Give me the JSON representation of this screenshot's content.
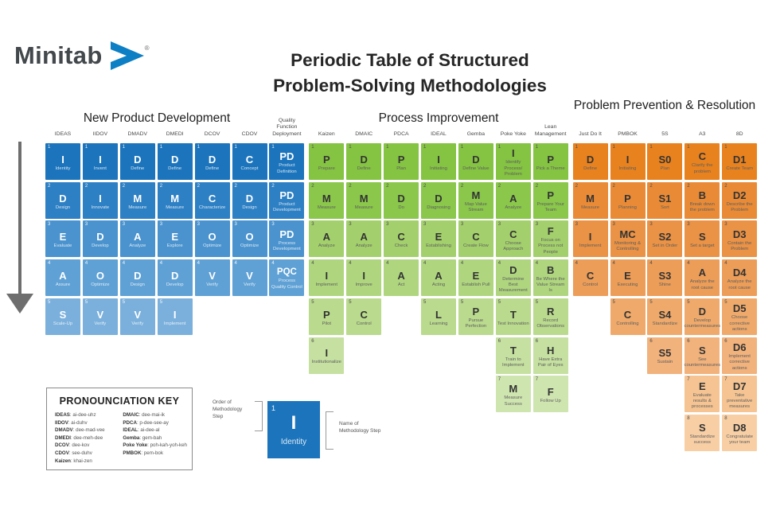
{
  "brand": {
    "name": "Minitab",
    "registered": "®",
    "logo_color": "#0d7fc4"
  },
  "title": {
    "line1": "Periodic Table of Structured",
    "line2": "Problem-Solving Methodologies"
  },
  "sections": {
    "npd": "New Product Development",
    "pi": "Process Improvement",
    "ppr": "Problem Prevention & Resolution"
  },
  "theme_colors": {
    "blue": [
      "#1C75BC",
      "#2E80C4",
      "#4A93CE",
      "#5FA1D5",
      "#7BB0DC"
    ],
    "green": [
      "#85C342",
      "#8AC74B",
      "#A3D06C",
      "#AFD67E",
      "#BADA8E",
      "#C5E0A0",
      "#CFE5B0"
    ],
    "orange": [
      "#E8821F",
      "#E98B36",
      "#EA9245",
      "#EC9D58",
      "#EFAA6B",
      "#F1B27C",
      "#F5C492",
      "#F8CFA5"
    ]
  },
  "columns": [
    {
      "label": "IDEAS",
      "theme": "blue",
      "steps": [
        {
          "n": 1,
          "sym": "I",
          "name": "Identity"
        },
        {
          "n": 2,
          "sym": "D",
          "name": "Design"
        },
        {
          "n": 3,
          "sym": "E",
          "name": "Evaluate"
        },
        {
          "n": 4,
          "sym": "A",
          "name": "Assure"
        },
        {
          "n": 5,
          "sym": "S",
          "name": "Scale-Up"
        }
      ]
    },
    {
      "label": "IIDOV",
      "theme": "blue",
      "steps": [
        {
          "n": 1,
          "sym": "I",
          "name": "Invent"
        },
        {
          "n": 2,
          "sym": "I",
          "name": "Innovate"
        },
        {
          "n": 3,
          "sym": "D",
          "name": "Develop"
        },
        {
          "n": 4,
          "sym": "O",
          "name": "Optimize"
        },
        {
          "n": 5,
          "sym": "V",
          "name": "Verify"
        }
      ]
    },
    {
      "label": "DMADV",
      "theme": "blue",
      "steps": [
        {
          "n": 1,
          "sym": "D",
          "name": "Define"
        },
        {
          "n": 2,
          "sym": "M",
          "name": "Measure"
        },
        {
          "n": 3,
          "sym": "A",
          "name": "Analyze"
        },
        {
          "n": 4,
          "sym": "D",
          "name": "Design"
        },
        {
          "n": 5,
          "sym": "V",
          "name": "Verify"
        }
      ]
    },
    {
      "label": "DMEDI",
      "theme": "blue",
      "steps": [
        {
          "n": 1,
          "sym": "D",
          "name": "Define"
        },
        {
          "n": 2,
          "sym": "M",
          "name": "Measure"
        },
        {
          "n": 3,
          "sym": "E",
          "name": "Explore"
        },
        {
          "n": 4,
          "sym": "D",
          "name": "Develop"
        },
        {
          "n": 5,
          "sym": "I",
          "name": "Implement"
        }
      ]
    },
    {
      "label": "DCOV",
      "theme": "blue",
      "steps": [
        {
          "n": 1,
          "sym": "D",
          "name": "Define"
        },
        {
          "n": 2,
          "sym": "C",
          "name": "Characterize"
        },
        {
          "n": 3,
          "sym": "O",
          "name": "Optimize"
        },
        {
          "n": 4,
          "sym": "V",
          "name": "Verify"
        }
      ]
    },
    {
      "label": "CDOV",
      "theme": "blue",
      "steps": [
        {
          "n": 1,
          "sym": "C",
          "name": "Concept"
        },
        {
          "n": 2,
          "sym": "D",
          "name": "Design"
        },
        {
          "n": 3,
          "sym": "O",
          "name": "Optimize"
        },
        {
          "n": 4,
          "sym": "V",
          "name": "Verify"
        }
      ]
    },
    {
      "label": "Quality Function Deployment",
      "theme": "blue",
      "steps": [
        {
          "n": 1,
          "sym": "PD",
          "name": "Product Definition"
        },
        {
          "n": 2,
          "sym": "PD",
          "name": "Product Development"
        },
        {
          "n": 3,
          "sym": "PD",
          "name": "Process Development"
        },
        {
          "n": 4,
          "sym": "PQC",
          "name": "Process Quality Control"
        }
      ]
    },
    {
      "label": "Kaizen",
      "theme": "green",
      "steps": [
        {
          "n": 1,
          "sym": "P",
          "name": "Prepare"
        },
        {
          "n": 2,
          "sym": "M",
          "name": "Measure"
        },
        {
          "n": 3,
          "sym": "A",
          "name": "Analyze"
        },
        {
          "n": 4,
          "sym": "I",
          "name": "Implement"
        },
        {
          "n": 5,
          "sym": "P",
          "name": "Pilot"
        },
        {
          "n": 6,
          "sym": "I",
          "name": "Institutionalize"
        }
      ]
    },
    {
      "label": "DMAIC",
      "theme": "green",
      "steps": [
        {
          "n": 1,
          "sym": "D",
          "name": "Define"
        },
        {
          "n": 2,
          "sym": "M",
          "name": "Measure"
        },
        {
          "n": 3,
          "sym": "A",
          "name": "Analyze"
        },
        {
          "n": 4,
          "sym": "I",
          "name": "Improve"
        },
        {
          "n": 5,
          "sym": "C",
          "name": "Control"
        }
      ]
    },
    {
      "label": "PDCA",
      "theme": "green",
      "steps": [
        {
          "n": 1,
          "sym": "P",
          "name": "Plan"
        },
        {
          "n": 2,
          "sym": "D",
          "name": "Do"
        },
        {
          "n": 3,
          "sym": "C",
          "name": "Check"
        },
        {
          "n": 4,
          "sym": "A",
          "name": "Act"
        }
      ]
    },
    {
      "label": "IDEAL",
      "theme": "green",
      "steps": [
        {
          "n": 1,
          "sym": "I",
          "name": "Initiating"
        },
        {
          "n": 2,
          "sym": "D",
          "name": "Diagnosing"
        },
        {
          "n": 3,
          "sym": "E",
          "name": "Establishing"
        },
        {
          "n": 4,
          "sym": "A",
          "name": "Acting"
        },
        {
          "n": 5,
          "sym": "L",
          "name": "Learning"
        }
      ]
    },
    {
      "label": "Gemba",
      "theme": "green",
      "steps": [
        {
          "n": 1,
          "sym": "D",
          "name": "Define Value"
        },
        {
          "n": 2,
          "sym": "M",
          "name": "Map Value Stream"
        },
        {
          "n": 3,
          "sym": "C",
          "name": "Create Flow"
        },
        {
          "n": 4,
          "sym": "E",
          "name": "Establish Pull"
        },
        {
          "n": 5,
          "sym": "P",
          "name": "Pursue Perfection"
        }
      ]
    },
    {
      "label": "Poke Yoke",
      "theme": "green",
      "steps": [
        {
          "n": 1,
          "sym": "I",
          "name": "Identify Process/ Problem"
        },
        {
          "n": 2,
          "sym": "A",
          "name": "Analyze"
        },
        {
          "n": 3,
          "sym": "C",
          "name": "Choose Approach"
        },
        {
          "n": 4,
          "sym": "D",
          "name": "Determine Best Measurement"
        },
        {
          "n": 5,
          "sym": "T",
          "name": "Test Innovation"
        },
        {
          "n": 6,
          "sym": "T",
          "name": "Train to Implement"
        },
        {
          "n": 7,
          "sym": "M",
          "name": "Measure Success"
        }
      ]
    },
    {
      "label": "Lean Management",
      "theme": "green",
      "steps": [
        {
          "n": 1,
          "sym": "P",
          "name": "Pick a Theme"
        },
        {
          "n": 2,
          "sym": "P",
          "name": "Prepare Your Team"
        },
        {
          "n": 3,
          "sym": "F",
          "name": "Focus on Process not People"
        },
        {
          "n": 4,
          "sym": "B",
          "name": "Be Where the Value Stream Is"
        },
        {
          "n": 5,
          "sym": "R",
          "name": "Record Observations"
        },
        {
          "n": 6,
          "sym": "H",
          "name": "Have Extra Pair of Eyes"
        },
        {
          "n": 7,
          "sym": "F",
          "name": "Follow Up"
        }
      ]
    },
    {
      "label": "Just Do It",
      "theme": "orange",
      "steps": [
        {
          "n": 1,
          "sym": "D",
          "name": "Define"
        },
        {
          "n": 2,
          "sym": "M",
          "name": "Measure"
        },
        {
          "n": 3,
          "sym": "I",
          "name": "Implement"
        },
        {
          "n": 4,
          "sym": "C",
          "name": "Control"
        }
      ]
    },
    {
      "label": "PMBOK",
      "theme": "orange",
      "steps": [
        {
          "n": 1,
          "sym": "I",
          "name": "Initiating"
        },
        {
          "n": 2,
          "sym": "P",
          "name": "Planning"
        },
        {
          "n": 3,
          "sym": "MC",
          "name": "Monitoring & Controlling"
        },
        {
          "n": 4,
          "sym": "E",
          "name": "Executing"
        },
        {
          "n": 5,
          "sym": "C",
          "name": "Controlling"
        }
      ]
    },
    {
      "label": "5S",
      "theme": "orange",
      "steps": [
        {
          "n": 1,
          "sym": "S0",
          "name": "Plan"
        },
        {
          "n": 2,
          "sym": "S1",
          "name": "Sort"
        },
        {
          "n": 3,
          "sym": "S2",
          "name": "Set in Order"
        },
        {
          "n": 4,
          "sym": "S3",
          "name": "Shine"
        },
        {
          "n": 5,
          "sym": "S4",
          "name": "Standardize"
        },
        {
          "n": 6,
          "sym": "S5",
          "name": "Sustain"
        }
      ]
    },
    {
      "label": "A3",
      "theme": "orange",
      "steps": [
        {
          "n": 1,
          "sym": "C",
          "name": "Clarify the problem"
        },
        {
          "n": 2,
          "sym": "B",
          "name": "Break down the problem"
        },
        {
          "n": 3,
          "sym": "S",
          "name": "Set a target"
        },
        {
          "n": 4,
          "sym": "A",
          "name": "Analyze the root cause"
        },
        {
          "n": 5,
          "sym": "D",
          "name": "Develop countermeasures"
        },
        {
          "n": 6,
          "sym": "S",
          "name": "See countermeasures"
        },
        {
          "n": 7,
          "sym": "E",
          "name": "Evaluate results & processes"
        },
        {
          "n": 8,
          "sym": "S",
          "name": "Standardize success"
        }
      ]
    },
    {
      "label": "8D",
      "theme": "orange",
      "steps": [
        {
          "n": 1,
          "sym": "D1",
          "name": "Create Team"
        },
        {
          "n": 2,
          "sym": "D2",
          "name": "Describe the Problem"
        },
        {
          "n": 3,
          "sym": "D3",
          "name": "Contain the Problem"
        },
        {
          "n": 4,
          "sym": "D4",
          "name": "Analyze the root cause"
        },
        {
          "n": 5,
          "sym": "D5",
          "name": "Choose corrective actions"
        },
        {
          "n": 6,
          "sym": "D6",
          "name": "Implement corrective actions"
        },
        {
          "n": 7,
          "sym": "D7",
          "name": "Take preventative measures"
        },
        {
          "n": 8,
          "sym": "D8",
          "name": "Congratulate your team"
        }
      ]
    }
  ],
  "pronunciation_key": {
    "title": "PRONOUNCIATION KEY",
    "col1": [
      {
        "term": "IDEAS",
        "pron": "ai-dee-uhz"
      },
      {
        "term": "IIDOV",
        "pron": "ai-duhv"
      },
      {
        "term": "DMADV",
        "pron": "dee-mad-vee"
      },
      {
        "term": "DMEDI",
        "pron": "dee-meh-dee"
      },
      {
        "term": "DCOV",
        "pron": "dee-kov"
      },
      {
        "term": "CDOV",
        "pron": "see-duhv"
      },
      {
        "term": "Kaizen",
        "pron": "khai-zen"
      }
    ],
    "col2": [
      {
        "term": "DMAIC",
        "pron": "dee-mai-ik"
      },
      {
        "term": "PDCA",
        "pron": "p-dee-see-ay"
      },
      {
        "term": "IDEAL",
        "pron": "ai-dee-al"
      },
      {
        "term": "Gemba",
        "pron": "gem-bah"
      },
      {
        "term": "Poke Yoke",
        "pron": "poh-kah-yoh-keh"
      },
      {
        "term": "PMBOK",
        "pron": "pem-bok"
      }
    ]
  },
  "legend": {
    "order_label": "Order of Methodology Step",
    "name_label": "Name of Methodology Step",
    "sample": {
      "order": "1",
      "letter": "I",
      "name": "Identity"
    }
  }
}
